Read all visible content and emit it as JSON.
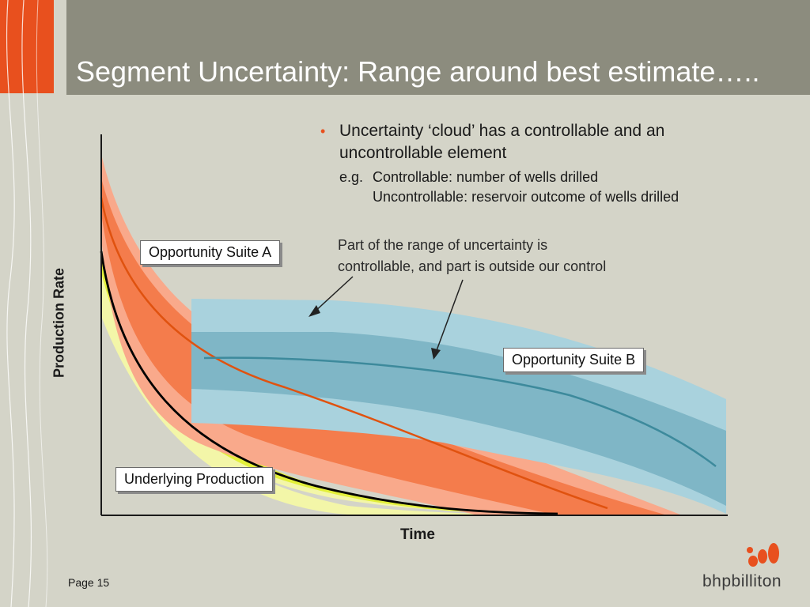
{
  "header": {
    "title": "Segment Uncertainty: Range around best estimate….."
  },
  "bullet": {
    "text": "Uncertainty ‘cloud’ has a controllable and an uncontrollable element",
    "eg_label": "e.g.",
    "example_1": "Controllable: number of wells drilled",
    "example_2": "Uncontrollable: reservoir outcome of wells drilled"
  },
  "note": {
    "line1": "Part of the range of uncertainty is",
    "line2": "controllable, and part is outside our control"
  },
  "labels": {
    "suite_a": "Opportunity Suite A",
    "suite_b": "Opportunity Suite B",
    "underlying": "Underlying Production"
  },
  "axes": {
    "y": "Production Rate",
    "x": "Time"
  },
  "footer": {
    "page": "Page 15",
    "logo": "bhpbilliton"
  },
  "colors": {
    "accent": "#e8501e",
    "title_bar": "#8c8c7e",
    "background": "#d4d4c8",
    "orange_light": "#f9a98b",
    "orange_mid": "#f47c4c",
    "orange_line": "#e0520f",
    "yellow_light": "#f3f6a8",
    "yellow_mid": "#e3f03a",
    "blue_light": "#a9d2dd",
    "blue_mid": "#7fb6c6",
    "blue_line": "#3d8a9c"
  }
}
